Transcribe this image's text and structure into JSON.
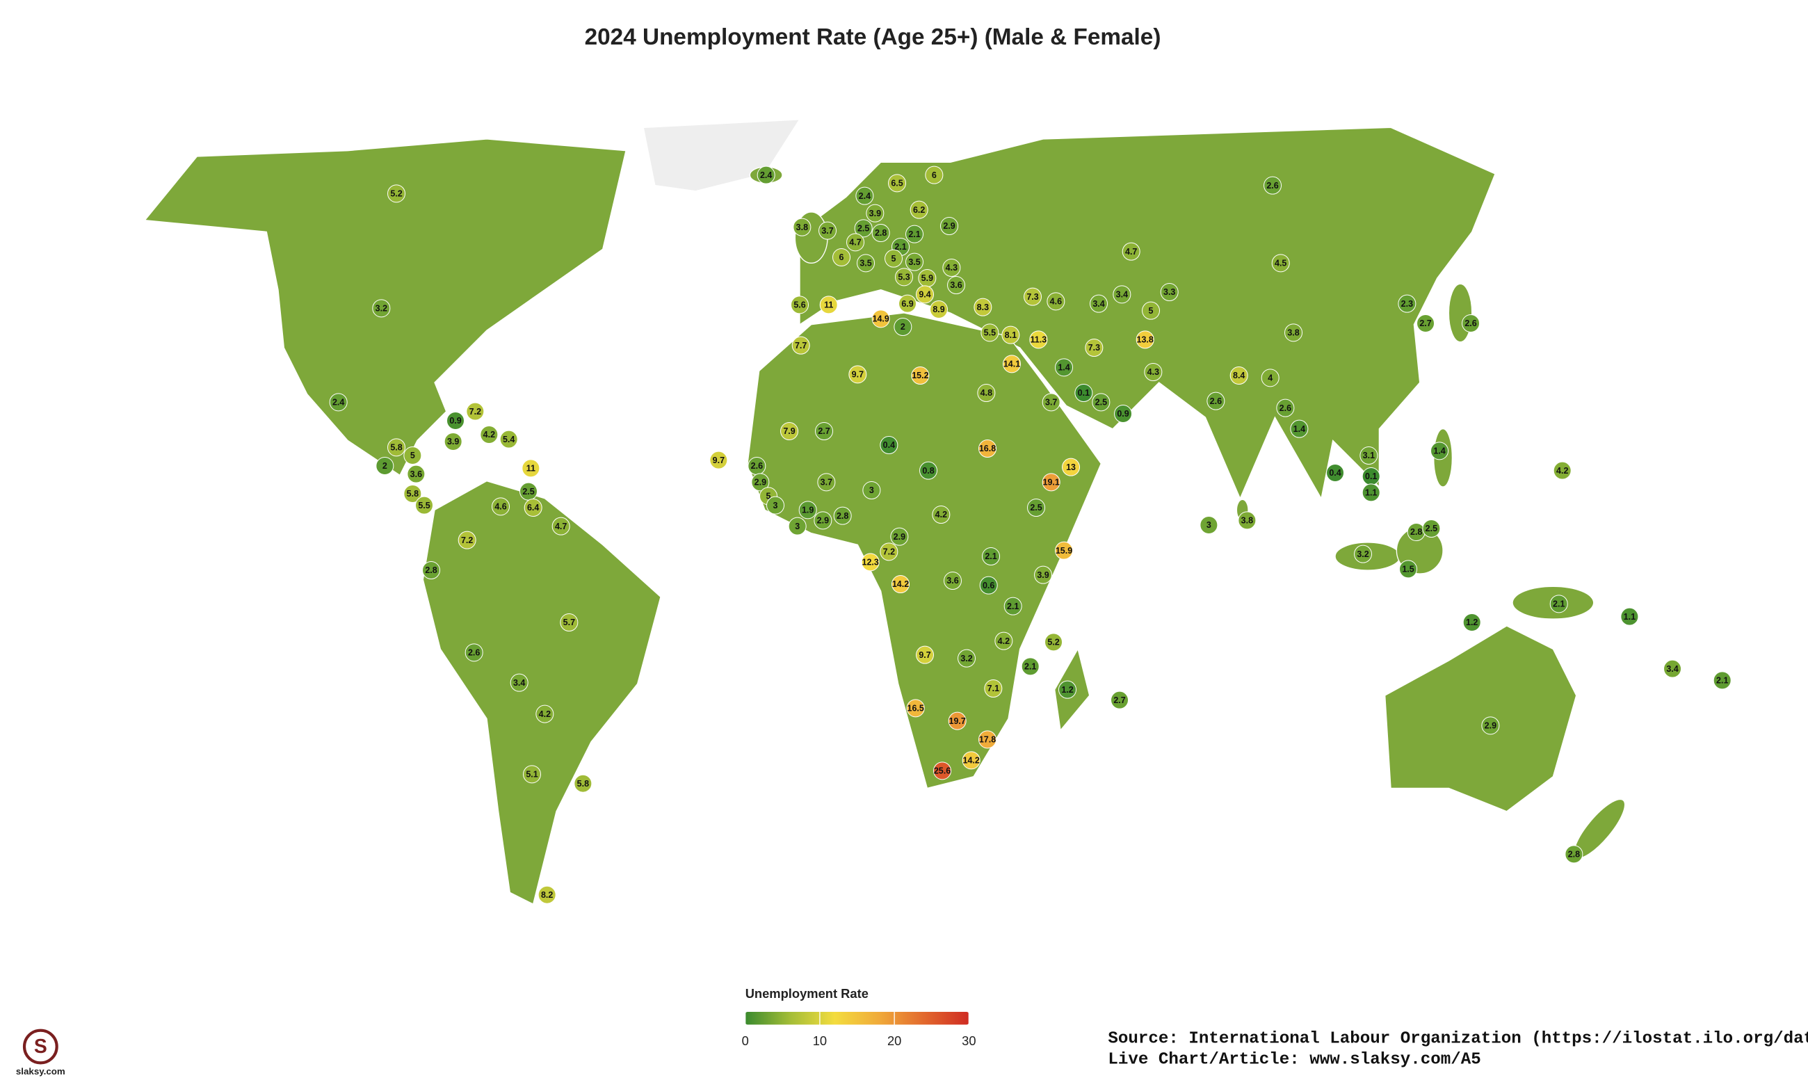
{
  "title": "2024 Unemployment Rate (Age 25+) (Male & Female)",
  "labels": [
    5.2,
    3.2,
    2.4,
    2.4,
    6.5,
    6,
    2.4,
    3.9,
    6.2,
    2.9,
    3.8,
    3.7,
    2.5,
    2.8,
    4.7,
    2.1,
    2.1,
    6,
    5,
    3.5,
    3.5,
    4.3,
    5.3,
    5.9,
    3.6,
    9.4,
    6.9,
    8.9,
    8.3,
    7.3,
    4.6,
    3.4,
    3.4,
    3.3,
    5,
    4.7,
    4.5,
    2.6,
    5.6,
    11,
    14.9,
    2,
    5.5,
    8.1,
    11.3,
    7.3,
    13.8,
    7.7,
    9.7,
    15.2,
    14.1,
    1.4,
    4.3,
    3.8,
    8.4,
    4,
    2.3,
    2.7,
    2.6,
    4.8,
    3.7,
    0.1,
    2.5,
    0.9,
    2.6,
    2.6,
    1.4,
    7.9,
    2.7,
    0.4,
    16.8,
    13,
    0.4,
    3.1,
    0.1,
    1.1,
    1.4,
    4.2,
    9.7,
    2.6,
    2.9,
    5,
    3,
    3.7,
    1.9,
    2.9,
    2.8,
    3,
    0.8,
    19.1,
    2.5,
    4.2,
    3,
    3,
    3.8,
    2.9,
    7.2,
    12.3,
    2.1,
    3.9,
    15.9,
    14.2,
    3.6,
    0.6,
    2.1,
    2.8,
    2.5,
    3.2,
    1.5,
    2.1,
    1.1,
    1.2,
    4.2,
    5.2,
    9.7,
    3.2,
    2.1,
    7.1,
    1.2,
    2.7,
    3.4,
    2.1,
    16.5,
    19.7,
    17.8,
    14.2,
    25.6,
    2.9,
    2.8,
    7.2,
    0.9,
    3.9,
    4.2,
    5.4,
    5.8,
    5,
    2,
    3.6,
    11,
    5.8,
    5.5,
    2.5,
    4.6,
    6.4,
    4.7,
    7.2,
    2.8,
    5.7,
    2.6,
    3.4,
    4.2,
    5.1,
    5.8,
    8.2
  ],
  "legend": {
    "title": "Unemployment Rate",
    "range": [
      0,
      30
    ],
    "ticks": [
      0,
      10,
      20,
      30
    ],
    "colors": [
      "#3a8a2e",
      "#a3bd37",
      "#f3dc3e",
      "#f0aa3a",
      "#e2682d",
      "#cf2b22"
    ]
  },
  "source": "Source: International Labour Organization (https://ilostat.ilo.org/data)",
  "live": "Live Chart/Article: www.slaksy.com/A5",
  "logo": {
    "letter": "S",
    "site": "slaksy.com"
  }
}
